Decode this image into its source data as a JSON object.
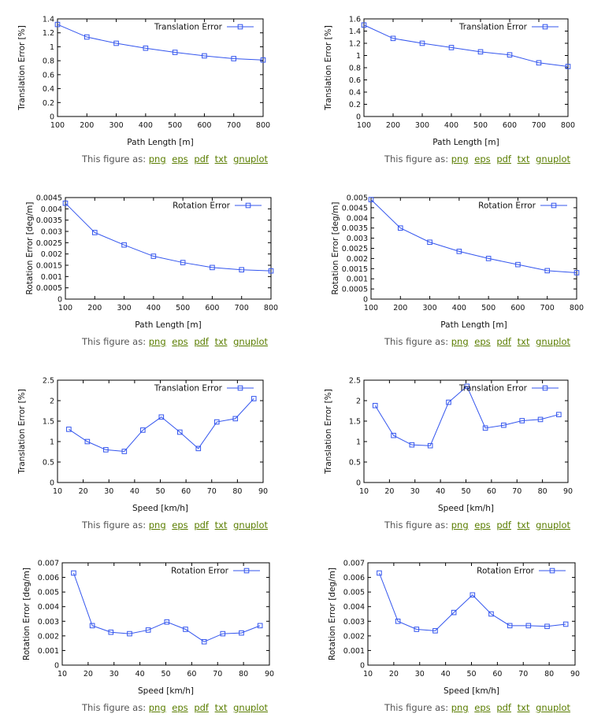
{
  "caption": {
    "prefix": "This figure as:",
    "links": [
      "png",
      "eps",
      "pdf",
      "txt",
      "gnuplot"
    ]
  },
  "colors": {
    "series": "#3355ee",
    "axis": "#000000",
    "link": "#5a7d00",
    "caption": "#555555"
  },
  "chart_data": [
    {
      "type": "line",
      "legend": "Translation Error",
      "xlabel": "Path Length [m]",
      "ylabel": "Translation Error [%]",
      "xlim": [
        100,
        800
      ],
      "ylim": [
        0,
        1.4
      ],
      "xticks": [
        100,
        200,
        300,
        400,
        500,
        600,
        700,
        800
      ],
      "yticks": [
        0,
        0.2,
        0.4,
        0.6,
        0.8,
        1,
        1.2,
        1.4
      ],
      "x": [
        100,
        200,
        300,
        400,
        500,
        600,
        700,
        800
      ],
      "y": [
        1.32,
        1.14,
        1.05,
        0.98,
        0.92,
        0.87,
        0.83,
        0.81
      ]
    },
    {
      "type": "line",
      "legend": "Translation Error",
      "xlabel": "Path Length [m]",
      "ylabel": "Translation Error [%]",
      "xlim": [
        100,
        800
      ],
      "ylim": [
        0,
        1.6
      ],
      "xticks": [
        100,
        200,
        300,
        400,
        500,
        600,
        700,
        800
      ],
      "yticks": [
        0,
        0.2,
        0.4,
        0.6,
        0.8,
        1,
        1.2,
        1.4,
        1.6
      ],
      "x": [
        100,
        200,
        300,
        400,
        500,
        600,
        700,
        800
      ],
      "y": [
        1.5,
        1.28,
        1.2,
        1.13,
        1.06,
        1.01,
        0.88,
        0.82
      ]
    },
    {
      "type": "line",
      "legend": "Rotation Error",
      "xlabel": "Path Length [m]",
      "ylabel": "Rotation Error [deg/m]",
      "xlim": [
        100,
        800
      ],
      "ylim": [
        0,
        0.0045
      ],
      "xticks": [
        100,
        200,
        300,
        400,
        500,
        600,
        700,
        800
      ],
      "yticks": [
        0,
        0.0005,
        0.001,
        0.0015,
        0.002,
        0.0025,
        0.003,
        0.0035,
        0.004,
        0.0045
      ],
      "x": [
        100,
        200,
        300,
        400,
        500,
        600,
        700,
        800
      ],
      "y": [
        0.00425,
        0.00295,
        0.0024,
        0.0019,
        0.00162,
        0.0014,
        0.0013,
        0.00125
      ]
    },
    {
      "type": "line",
      "legend": "Rotation Error",
      "xlabel": "Path Length [m]",
      "ylabel": "Rotation Error [deg/m]",
      "xlim": [
        100,
        800
      ],
      "ylim": [
        0,
        0.005
      ],
      "xticks": [
        100,
        200,
        300,
        400,
        500,
        600,
        700,
        800
      ],
      "yticks": [
        0,
        0.0005,
        0.001,
        0.0015,
        0.002,
        0.0025,
        0.003,
        0.0035,
        0.004,
        0.0045,
        0.005
      ],
      "x": [
        100,
        200,
        300,
        400,
        500,
        600,
        700,
        800
      ],
      "y": [
        0.0049,
        0.0035,
        0.0028,
        0.00235,
        0.002,
        0.0017,
        0.0014,
        0.0013
      ]
    },
    {
      "type": "line",
      "legend": "Translation Error",
      "xlabel": "Speed [km/h]",
      "ylabel": "Translation Error [%]",
      "xlim": [
        10,
        90
      ],
      "ylim": [
        0,
        2.5
      ],
      "xticks": [
        10,
        20,
        30,
        40,
        50,
        60,
        70,
        80,
        90
      ],
      "yticks": [
        0,
        0.5,
        1,
        1.5,
        2,
        2.5
      ],
      "x": [
        14.4,
        21.6,
        28.8,
        36,
        43.2,
        50.4,
        57.6,
        64.8,
        72,
        79.2,
        86.4
      ],
      "y": [
        1.3,
        1.0,
        0.8,
        0.76,
        1.28,
        1.6,
        1.23,
        0.83,
        1.48,
        1.56,
        2.05
      ]
    },
    {
      "type": "line",
      "legend": "Translation Error",
      "xlabel": "Speed [km/h]",
      "ylabel": "Translation Error [%]",
      "xlim": [
        10,
        90
      ],
      "ylim": [
        0,
        2.5
      ],
      "xticks": [
        10,
        20,
        30,
        40,
        50,
        60,
        70,
        80,
        90
      ],
      "yticks": [
        0,
        0.5,
        1,
        1.5,
        2,
        2.5
      ],
      "x": [
        14.4,
        21.6,
        28.8,
        36,
        43.2,
        50.4,
        57.6,
        64.8,
        72,
        79.2,
        86.4
      ],
      "y": [
        1.88,
        1.15,
        0.92,
        0.9,
        1.96,
        2.35,
        1.33,
        1.4,
        1.51,
        1.54,
        1.66
      ]
    },
    {
      "type": "line",
      "legend": "Rotation Error",
      "xlabel": "Speed [km/h]",
      "ylabel": "Rotation Error [deg/m]",
      "xlim": [
        10,
        90
      ],
      "ylim": [
        0,
        0.007
      ],
      "xticks": [
        10,
        20,
        30,
        40,
        50,
        60,
        70,
        80,
        90
      ],
      "yticks": [
        0,
        0.001,
        0.002,
        0.003,
        0.004,
        0.005,
        0.006,
        0.007
      ],
      "x": [
        14.4,
        21.6,
        28.8,
        36,
        43.2,
        50.4,
        57.6,
        64.8,
        72,
        79.2,
        86.4
      ],
      "y": [
        0.0063,
        0.0027,
        0.00225,
        0.00215,
        0.0024,
        0.00295,
        0.00245,
        0.0016,
        0.00215,
        0.0022,
        0.0027
      ]
    },
    {
      "type": "line",
      "legend": "Rotation Error",
      "xlabel": "Speed [km/h]",
      "ylabel": "Rotation Error [deg/m]",
      "xlim": [
        10,
        90
      ],
      "ylim": [
        0,
        0.007
      ],
      "xticks": [
        10,
        20,
        30,
        40,
        50,
        60,
        70,
        80,
        90
      ],
      "yticks": [
        0,
        0.001,
        0.002,
        0.003,
        0.004,
        0.005,
        0.006,
        0.007
      ],
      "x": [
        14.4,
        21.6,
        28.8,
        36,
        43.2,
        50.4,
        57.6,
        64.8,
        72,
        79.2,
        86.4
      ],
      "y": [
        0.0063,
        0.003,
        0.00245,
        0.00235,
        0.0036,
        0.0048,
        0.0035,
        0.0027,
        0.0027,
        0.00265,
        0.0028
      ]
    }
  ]
}
